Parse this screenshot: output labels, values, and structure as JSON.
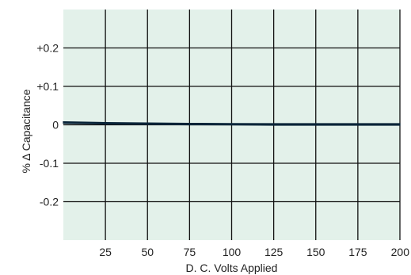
{
  "chart_data": {
    "type": "line",
    "title": "",
    "xlabel": "D. C. Volts Applied",
    "ylabel": "% Δ Capacitance",
    "xlim": [
      0,
      200
    ],
    "ylim": [
      -0.3,
      0.3
    ],
    "x_ticks": [
      {
        "value": 25,
        "label": "25"
      },
      {
        "value": 50,
        "label": "50"
      },
      {
        "value": 75,
        "label": "75"
      },
      {
        "value": 100,
        "label": "100"
      },
      {
        "value": 125,
        "label": "125"
      },
      {
        "value": 150,
        "label": "150"
      },
      {
        "value": 175,
        "label": "175"
      },
      {
        "value": 200,
        "label": "200"
      }
    ],
    "y_ticks": [
      {
        "value": 0.2,
        "label": "+0.2"
      },
      {
        "value": 0.1,
        "label": "+0.1"
      },
      {
        "value": 0,
        "label": "0"
      },
      {
        "value": -0.1,
        "label": "-0.1"
      },
      {
        "value": -0.2,
        "label": "-0.2"
      }
    ],
    "grid": true,
    "series": [
      {
        "x": [
          0,
          25,
          50,
          75,
          100,
          125,
          150,
          175,
          200
        ],
        "y": [
          0.006,
          0.004,
          0.003,
          0.002,
          0.0015,
          0.001,
          0.001,
          0.001,
          0.001
        ],
        "color": "#0b4f6c",
        "band": 0.004
      }
    ],
    "colors": {
      "plot_background": "#e3f1ea",
      "grid": "#111111",
      "band_edge": "#0a2438"
    }
  }
}
